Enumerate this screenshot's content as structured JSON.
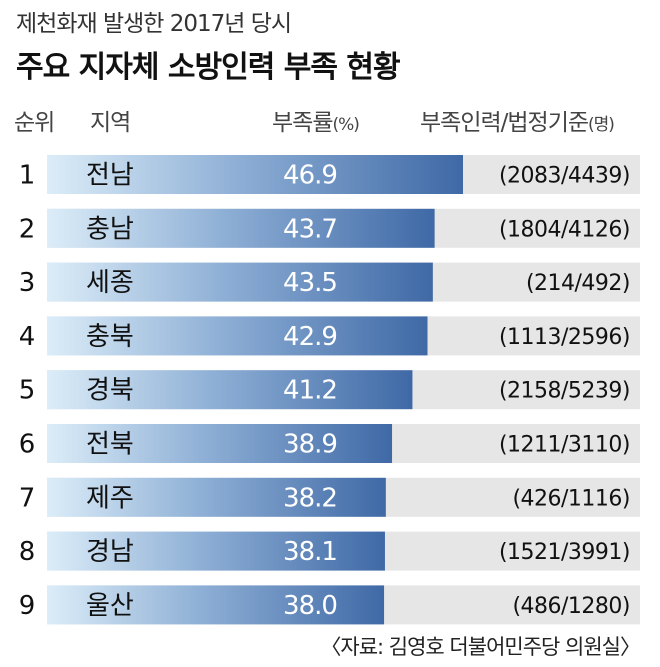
{
  "subtitle": "제천화재 발생한 2017년 당시",
  "title": "주요 지자체 소방인력 부족 현황",
  "headers": {
    "rank": "순위",
    "region": "지역",
    "rate": "부족률",
    "rate_unit": "(%)",
    "staff": "부족인력/법정기준",
    "staff_unit": "(명)"
  },
  "source": "〈자료: 김영호 더불어민주당 의원실〉",
  "colors": {
    "bar_dark": "#3f69a6",
    "bar_light": "#dcedf8",
    "track": "#e6e6e6"
  },
  "chart_data": {
    "type": "bar",
    "title": "주요 지자체 소방인력 부족 현황",
    "xlabel": "",
    "ylabel": "부족률(%)",
    "ylim": [
      0,
      100
    ],
    "categories": [
      "전남",
      "충남",
      "세종",
      "충북",
      "경북",
      "전북",
      "제주",
      "경남",
      "울산"
    ],
    "ranks": [
      "1",
      "2",
      "3",
      "4",
      "5",
      "6",
      "7",
      "8",
      "9"
    ],
    "values": [
      46.9,
      43.7,
      43.5,
      42.9,
      41.2,
      38.9,
      38.2,
      38.1,
      38.0
    ],
    "value_labels": [
      "46.9",
      "43.7",
      "43.5",
      "42.9",
      "41.2",
      "38.9",
      "38.2",
      "38.1",
      "38.0"
    ],
    "staff_labels": [
      "(2083/4439)",
      "(1804/4126)",
      "(214/492)",
      "(1113/2596)",
      "(2158/5239)",
      "(1211/3110)",
      "(426/1116)",
      "(1521/3991)",
      "(486/1280)"
    ]
  }
}
